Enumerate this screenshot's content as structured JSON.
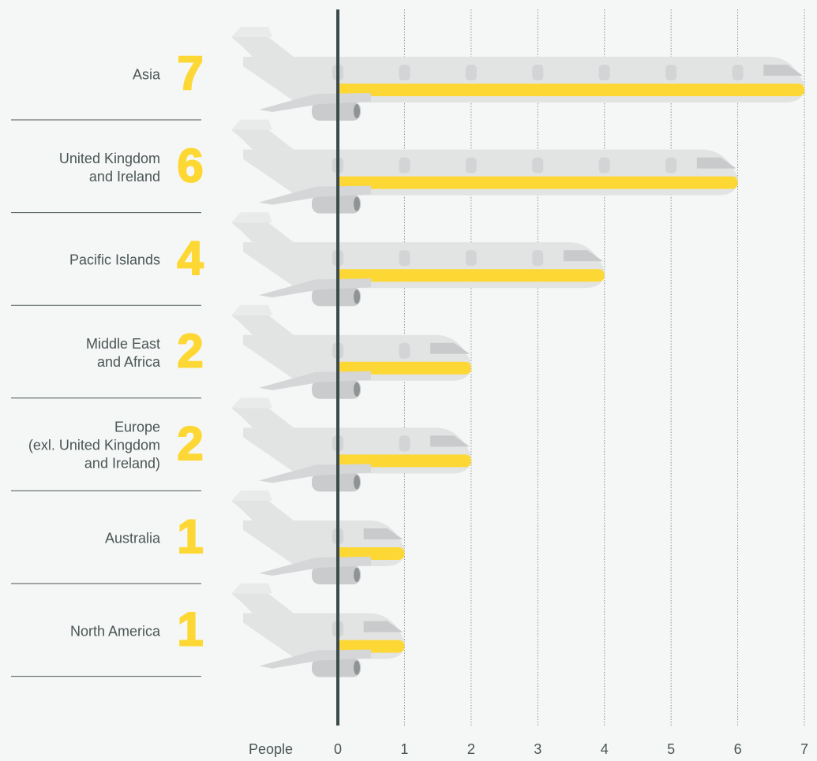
{
  "chart_data": {
    "type": "bar",
    "orientation": "horizontal",
    "categories": [
      "Asia",
      "United Kingdom\nand Ireland",
      "Pacific Islands",
      "Middle East\nand Africa",
      "Europe\n(exl. United Kingdom\nand Ireland)",
      "Australia",
      "North America"
    ],
    "values": [
      7,
      6,
      4,
      2,
      2,
      1,
      1
    ],
    "color": "#fdd835",
    "xlabel": "People",
    "xlim": [
      0,
      7
    ],
    "xticks": [
      0,
      1,
      2,
      3,
      4,
      5,
      6,
      7
    ],
    "grid": true
  }
}
